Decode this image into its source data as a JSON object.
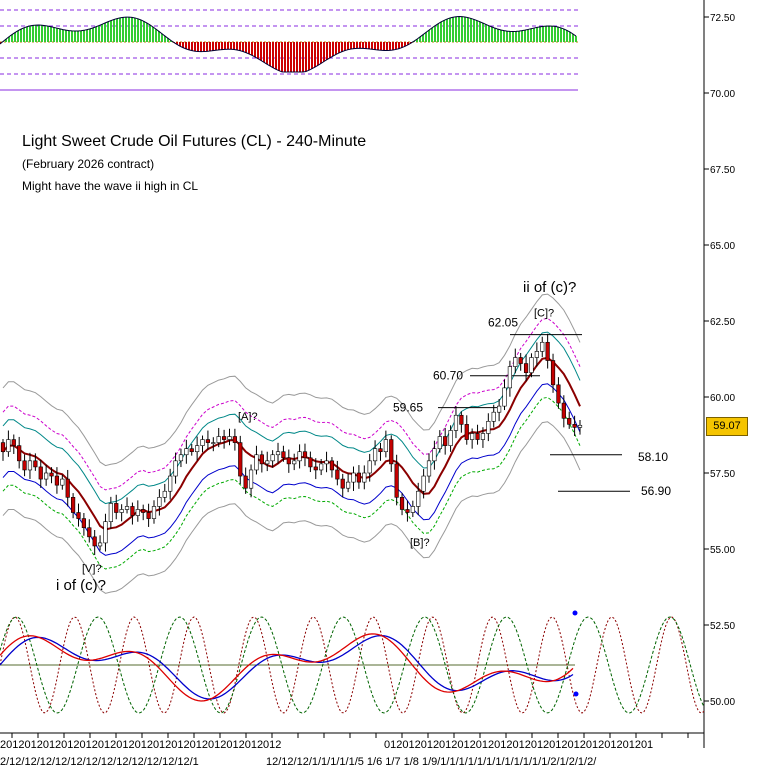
{
  "chart_data": {
    "type": "candlestick",
    "title": "Light Sweet Crude Oil Futures (CL) - 240-Minute",
    "subtitle": "(February 2026 contract)",
    "note": "Might have the wave ii high in CL",
    "ylim": [
      49.0,
      73.0
    ],
    "y_ticks": [
      "72.50",
      "70.00",
      "67.50",
      "65.00",
      "62.50",
      "60.00",
      "57.50",
      "55.00",
      "52.50",
      "50.00"
    ],
    "last_price": "59.07",
    "x_tick_labels_row1": [
      "2012012012012012012012012012012012012012012012",
      "01201201201201201201201201201201201201201201"
    ],
    "x_tick_labels_row2": [
      "2/12/12/12/12/12/12/12/12/12/12/12/12/1",
      "12/12/12/1/1/1/1/1/5 1/6 1/7 1/8 1/9/1/1/1/1/1/1/1/1/1/1/1/1/2/1/2/1/2/"
    ],
    "levels": [
      {
        "label": "62.05",
        "price": 62.05
      },
      {
        "label": "60.70",
        "price": 60.7
      },
      {
        "label": "59.65",
        "price": 59.65
      },
      {
        "label": "58.10",
        "price": 58.1
      },
      {
        "label": "56.90",
        "price": 56.9
      }
    ],
    "wave_labels": [
      {
        "text": "[A]?",
        "price": 59.25
      },
      {
        "text": "[V]?",
        "price": 54.25
      },
      {
        "text": "i of (c)?",
        "price": 53.65
      },
      {
        "text": "[B]?",
        "price": 55.1
      },
      {
        "text": "[C]?",
        "price": 62.65
      },
      {
        "text": "ii of (c)?",
        "price": 63.45
      }
    ],
    "closes": [
      58.2,
      58.6,
      58.4,
      57.9,
      57.6,
      57.9,
      57.7,
      57.3,
      57.5,
      57.4,
      57.1,
      57.3,
      56.7,
      56.2,
      56.0,
      55.7,
      55.4,
      55.1,
      55.2,
      55.9,
      56.5,
      56.2,
      56.3,
      56.4,
      56.1,
      56.3,
      56.2,
      56.0,
      56.4,
      56.7,
      56.9,
      57.4,
      57.9,
      58.1,
      58.3,
      58.2,
      58.4,
      58.6,
      58.5,
      58.5,
      58.7,
      58.6,
      58.7,
      58.5,
      57.4,
      57.0,
      57.6,
      58.1,
      57.8,
      57.9,
      58.1,
      58.2,
      58.0,
      57.8,
      57.9,
      58.2,
      58.0,
      57.7,
      57.6,
      57.8,
      57.9,
      57.6,
      57.3,
      57.0,
      57.2,
      57.5,
      57.2,
      57.5,
      57.9,
      58.3,
      58.2,
      58.6,
      57.8,
      56.7,
      56.3,
      56.2,
      56.4,
      56.9,
      57.4,
      57.9,
      58.3,
      58.7,
      58.4,
      58.9,
      59.4,
      59.1,
      58.6,
      58.8,
      58.6,
      58.8,
      59.2,
      59.5,
      59.7,
      60.3,
      61.0,
      61.3,
      61.1,
      60.8,
      61.3,
      61.5,
      61.8,
      61.2,
      60.4,
      59.8,
      59.3,
      59.1,
      59.0,
      59.07
    ]
  }
}
